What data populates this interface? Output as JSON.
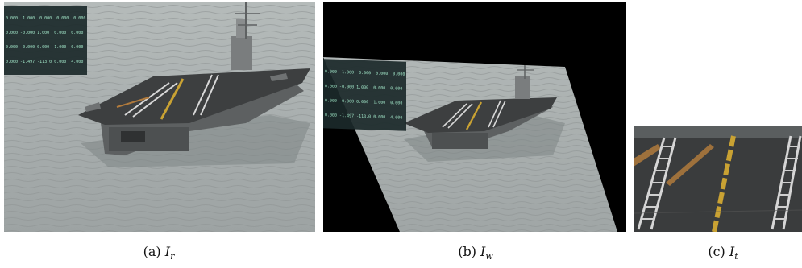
{
  "figure": {
    "panels": [
      {
        "label": "(a)",
        "symbol": "I",
        "subscript": "r"
      },
      {
        "label": "(b)",
        "symbol": "I",
        "subscript": "w"
      },
      {
        "label": "(c)",
        "symbol": "I",
        "subscript": "t"
      }
    ]
  },
  "hud": {
    "lines": [
      "0.000  1.000  0.000  0.000  0.000",
      "0.000 -0.000 1.000  0.000  0.000",
      "0.000  0.000 0.000  1.000  0.000",
      "0.000 -1.497 -113.0 0.000  4.000"
    ]
  },
  "colors": {
    "sea": "#a8aeae",
    "deck": "#3d3f40",
    "hull": "#6a6d6e",
    "stripe_yellow": "#c9a233",
    "background_black": "#000000"
  }
}
